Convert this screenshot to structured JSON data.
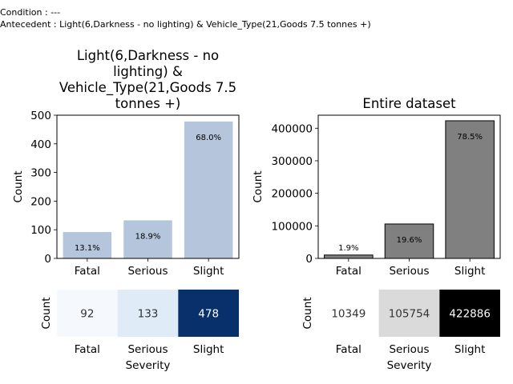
{
  "header": {
    "condition": "Condition : ---",
    "antecedent": "Antecedent : Light(6,Darkness - no lighting) & Vehicle_Type(21,Goods 7.5 tonnes +)"
  },
  "chart_data": [
    {
      "type": "bar",
      "title_lines": [
        "Light(6,Darkness - no",
        "lighting) &",
        "Vehicle_Type(21,Goods 7.5",
        "tonnes +)"
      ],
      "categories": [
        "Fatal",
        "Serious",
        "Slight"
      ],
      "values": [
        92,
        133,
        478
      ],
      "percent_labels": [
        "13.1%",
        "18.9%",
        "68.0%"
      ],
      "ylabel": "Count",
      "ylim": [
        0,
        500
      ],
      "yticks": [
        "0",
        "100",
        "200",
        "300",
        "400",
        "500"
      ],
      "bar_color": "#b4c5dc",
      "grid": false
    },
    {
      "type": "bar",
      "title_lines": [
        "Entire dataset"
      ],
      "categories": [
        "Fatal",
        "Serious",
        "Slight"
      ],
      "values": [
        10349,
        105754,
        422886
      ],
      "percent_labels": [
        "1.9%",
        "19.6%",
        "78.5%"
      ],
      "ylabel": "Count",
      "ylim": [
        0,
        440000
      ],
      "yticks": [
        "0",
        "100000",
        "200000",
        "300000",
        "400000"
      ],
      "bar_color": "#808080",
      "grid": false
    },
    {
      "type": "heatmap",
      "categories": [
        "Fatal",
        "Serious",
        "Slight"
      ],
      "values": [
        92,
        133,
        478
      ],
      "cell_labels": [
        "92",
        "133",
        "478"
      ],
      "cell_colors": [
        "#f5f9fe",
        "#dfebf7",
        "#08306b"
      ],
      "text_colors": [
        "#333333",
        "#333333",
        "#ffffff"
      ],
      "ylabel": "Count",
      "xlabel": "Severity"
    },
    {
      "type": "heatmap",
      "categories": [
        "Fatal",
        "Serious",
        "Slight"
      ],
      "values": [
        10349,
        105754,
        422886
      ],
      "cell_labels": [
        "10349",
        "105754",
        "422886"
      ],
      "cell_colors": [
        "#ffffff",
        "#dadada",
        "#000000"
      ],
      "text_colors": [
        "#333333",
        "#333333",
        "#ffffff"
      ],
      "ylabel": "Count",
      "xlabel": "Severity"
    }
  ]
}
